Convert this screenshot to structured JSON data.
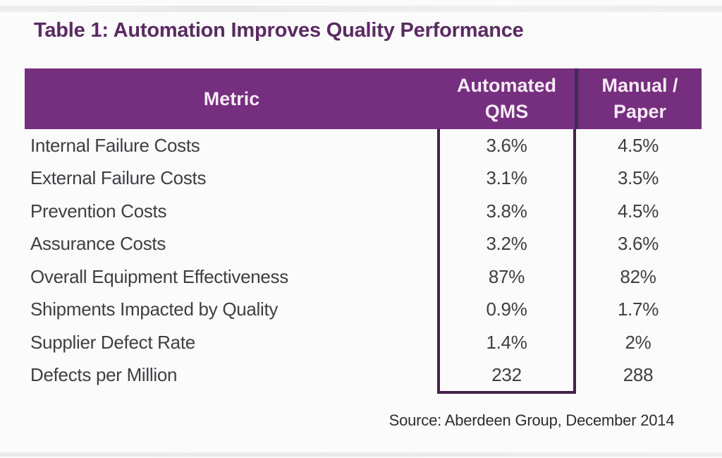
{
  "title": "Table 1: Automation Improves Quality Performance",
  "source": "Source: Aberdeen Group, December 2014",
  "colors": {
    "title_text": "#5a2a62",
    "header_background": "#762e7e",
    "header_text": "#f6ebf6",
    "header_divider": "#3a2e5a",
    "highlight_box_border": "#46224b",
    "body_text": "#3f3e40",
    "source_text": "#2e2e2e"
  },
  "table": {
    "header": {
      "metric": "Metric",
      "automated_line1": "Automated",
      "automated_line2": "QMS",
      "manual_line1": "Manual /",
      "manual_line2": "Paper"
    },
    "rows": [
      {
        "metric": "Internal Failure Costs",
        "automated": "3.6%",
        "manual": "4.5%"
      },
      {
        "metric": "External Failure Costs",
        "automated": "3.1%",
        "manual": "3.5%"
      },
      {
        "metric": "Prevention Costs",
        "automated": "3.8%",
        "manual": "4.5%"
      },
      {
        "metric": "Assurance Costs",
        "automated": "3.2%",
        "manual": "3.6%"
      },
      {
        "metric": "Overall Equipment Effectiveness",
        "automated": "87%",
        "manual": "82%"
      },
      {
        "metric": "Shipments Impacted by Quality",
        "automated": "0.9%",
        "manual": "1.7%"
      },
      {
        "metric": "Supplier Defect Rate",
        "automated": "1.4%",
        "manual": "2%"
      },
      {
        "metric": "Defects per Million",
        "automated": "232",
        "manual": "288"
      }
    ]
  },
  "chart_data": {
    "type": "table",
    "title": "Table 1: Automation Improves Quality Performance",
    "columns": [
      "Metric",
      "Automated QMS",
      "Manual / Paper"
    ],
    "rows": [
      [
        "Internal Failure Costs",
        "3.6%",
        "4.5%"
      ],
      [
        "External Failure Costs",
        "3.1%",
        "3.5%"
      ],
      [
        "Prevention Costs",
        "3.8%",
        "4.5%"
      ],
      [
        "Assurance Costs",
        "3.2%",
        "3.6%"
      ],
      [
        "Overall Equipment Effectiveness",
        "87%",
        "82%"
      ],
      [
        "Shipments Impacted by Quality",
        "0.9%",
        "1.7%"
      ],
      [
        "Supplier Defect Rate",
        "1.4%",
        "2%"
      ],
      [
        "Defects per Million",
        "232",
        "288"
      ]
    ],
    "highlighted_column": "Automated QMS",
    "source": "Source: Aberdeen Group, December 2014",
    "layout": {
      "header_style": "solid purple bar, white bold text",
      "highlight": "dark purple outline around Automated QMS data column",
      "grid": "off"
    }
  }
}
